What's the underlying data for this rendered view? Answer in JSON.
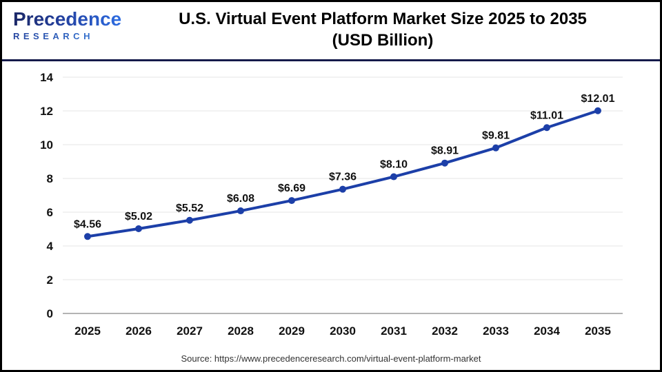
{
  "header": {
    "logo": {
      "brand": "Precedence",
      "sub": "RESEARCH"
    },
    "title_line1": "U.S. Virtual Event Platform Market Size 2025 to 2035",
    "title_line2": "(USD Billion)"
  },
  "chart_data": {
    "type": "line",
    "title": "U.S. Virtual Event Platform Market Size 2025 to 2035 (USD Billion)",
    "categories": [
      "2025",
      "2026",
      "2027",
      "2028",
      "2029",
      "2030",
      "2031",
      "2032",
      "2033",
      "2034",
      "2035"
    ],
    "values": [
      4.56,
      5.02,
      5.52,
      6.08,
      6.69,
      7.36,
      8.1,
      8.91,
      9.81,
      11.01,
      12.01
    ],
    "value_labels": [
      "$4.56",
      "$5.02",
      "$5.52",
      "$6.08",
      "$6.69",
      "$7.36",
      "$8.10",
      "$8.91",
      "$9.81",
      "$11.01",
      "$12.01"
    ],
    "xlabel": "",
    "ylabel": "",
    "ylim": [
      0,
      14
    ],
    "yticks": [
      0,
      2,
      4,
      6,
      8,
      10,
      12,
      14
    ],
    "grid": true,
    "legend": "none",
    "line_color": "#1c3fa8",
    "marker": "circle"
  },
  "footer": {
    "source": "Source: https://www.precedenceresearch.com/virtual-event-platform-market"
  },
  "colors": {
    "accent_blue": "#1c3fa8",
    "divider_navy": "#151a4a",
    "grid": "#eaeaea",
    "axis_line": "#b3b3b3",
    "logo_dark": "#1b2766",
    "logo_light": "#2e6de2",
    "text": "#111111"
  }
}
